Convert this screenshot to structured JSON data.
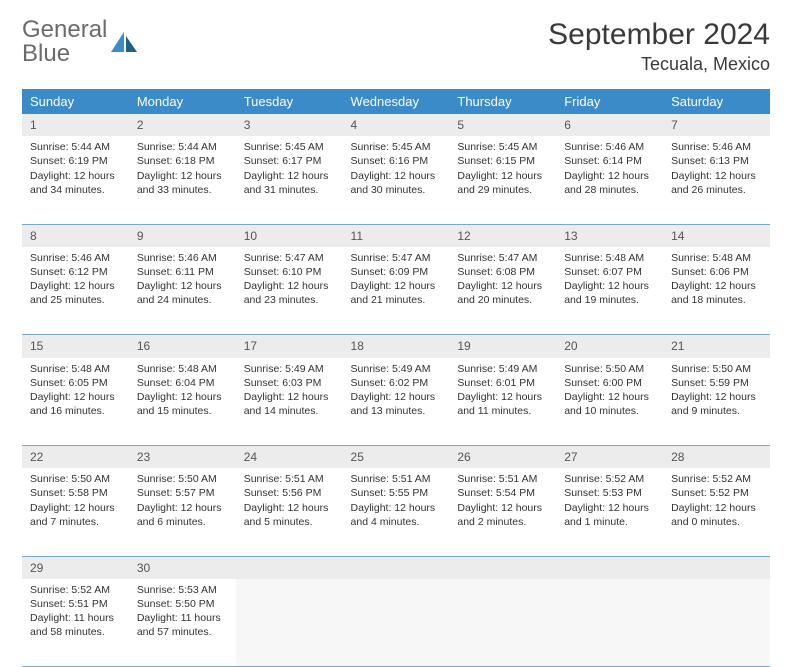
{
  "branding": {
    "logo_word1": "General",
    "logo_word2": "Blue",
    "logo_color_gray": "#6b6b6b",
    "logo_color_blue": "#3b8bc9"
  },
  "header": {
    "month_title": "September 2024",
    "location": "Tecuala, Mexico"
  },
  "styling": {
    "header_bg": "#3b8bc9",
    "header_text": "#ffffff",
    "daynum_bg": "#ececec",
    "row_border": "#7aa8c9",
    "body_font_size": 10.5,
    "title_font_size": 30,
    "location_font_size": 18
  },
  "weekdays": [
    "Sunday",
    "Monday",
    "Tuesday",
    "Wednesday",
    "Thursday",
    "Friday",
    "Saturday"
  ],
  "days": [
    {
      "n": 1,
      "sunrise": "5:44 AM",
      "sunset": "6:19 PM",
      "daylight": "12 hours and 34 minutes."
    },
    {
      "n": 2,
      "sunrise": "5:44 AM",
      "sunset": "6:18 PM",
      "daylight": "12 hours and 33 minutes."
    },
    {
      "n": 3,
      "sunrise": "5:45 AM",
      "sunset": "6:17 PM",
      "daylight": "12 hours and 31 minutes."
    },
    {
      "n": 4,
      "sunrise": "5:45 AM",
      "sunset": "6:16 PM",
      "daylight": "12 hours and 30 minutes."
    },
    {
      "n": 5,
      "sunrise": "5:45 AM",
      "sunset": "6:15 PM",
      "daylight": "12 hours and 29 minutes."
    },
    {
      "n": 6,
      "sunrise": "5:46 AM",
      "sunset": "6:14 PM",
      "daylight": "12 hours and 28 minutes."
    },
    {
      "n": 7,
      "sunrise": "5:46 AM",
      "sunset": "6:13 PM",
      "daylight": "12 hours and 26 minutes."
    },
    {
      "n": 8,
      "sunrise": "5:46 AM",
      "sunset": "6:12 PM",
      "daylight": "12 hours and 25 minutes."
    },
    {
      "n": 9,
      "sunrise": "5:46 AM",
      "sunset": "6:11 PM",
      "daylight": "12 hours and 24 minutes."
    },
    {
      "n": 10,
      "sunrise": "5:47 AM",
      "sunset": "6:10 PM",
      "daylight": "12 hours and 23 minutes."
    },
    {
      "n": 11,
      "sunrise": "5:47 AM",
      "sunset": "6:09 PM",
      "daylight": "12 hours and 21 minutes."
    },
    {
      "n": 12,
      "sunrise": "5:47 AM",
      "sunset": "6:08 PM",
      "daylight": "12 hours and 20 minutes."
    },
    {
      "n": 13,
      "sunrise": "5:48 AM",
      "sunset": "6:07 PM",
      "daylight": "12 hours and 19 minutes."
    },
    {
      "n": 14,
      "sunrise": "5:48 AM",
      "sunset": "6:06 PM",
      "daylight": "12 hours and 18 minutes."
    },
    {
      "n": 15,
      "sunrise": "5:48 AM",
      "sunset": "6:05 PM",
      "daylight": "12 hours and 16 minutes."
    },
    {
      "n": 16,
      "sunrise": "5:48 AM",
      "sunset": "6:04 PM",
      "daylight": "12 hours and 15 minutes."
    },
    {
      "n": 17,
      "sunrise": "5:49 AM",
      "sunset": "6:03 PM",
      "daylight": "12 hours and 14 minutes."
    },
    {
      "n": 18,
      "sunrise": "5:49 AM",
      "sunset": "6:02 PM",
      "daylight": "12 hours and 13 minutes."
    },
    {
      "n": 19,
      "sunrise": "5:49 AM",
      "sunset": "6:01 PM",
      "daylight": "12 hours and 11 minutes."
    },
    {
      "n": 20,
      "sunrise": "5:50 AM",
      "sunset": "6:00 PM",
      "daylight": "12 hours and 10 minutes."
    },
    {
      "n": 21,
      "sunrise": "5:50 AM",
      "sunset": "5:59 PM",
      "daylight": "12 hours and 9 minutes."
    },
    {
      "n": 22,
      "sunrise": "5:50 AM",
      "sunset": "5:58 PM",
      "daylight": "12 hours and 7 minutes."
    },
    {
      "n": 23,
      "sunrise": "5:50 AM",
      "sunset": "5:57 PM",
      "daylight": "12 hours and 6 minutes."
    },
    {
      "n": 24,
      "sunrise": "5:51 AM",
      "sunset": "5:56 PM",
      "daylight": "12 hours and 5 minutes."
    },
    {
      "n": 25,
      "sunrise": "5:51 AM",
      "sunset": "5:55 PM",
      "daylight": "12 hours and 4 minutes."
    },
    {
      "n": 26,
      "sunrise": "5:51 AM",
      "sunset": "5:54 PM",
      "daylight": "12 hours and 2 minutes."
    },
    {
      "n": 27,
      "sunrise": "5:52 AM",
      "sunset": "5:53 PM",
      "daylight": "12 hours and 1 minute."
    },
    {
      "n": 28,
      "sunrise": "5:52 AM",
      "sunset": "5:52 PM",
      "daylight": "12 hours and 0 minutes."
    },
    {
      "n": 29,
      "sunrise": "5:52 AM",
      "sunset": "5:51 PM",
      "daylight": "11 hours and 58 minutes."
    },
    {
      "n": 30,
      "sunrise": "5:53 AM",
      "sunset": "5:50 PM",
      "daylight": "11 hours and 57 minutes."
    }
  ],
  "labels": {
    "sunrise_prefix": "Sunrise: ",
    "sunset_prefix": "Sunset: ",
    "daylight_prefix": "Daylight: "
  },
  "layout": {
    "first_weekday_index": 0,
    "blank_trailing": 5
  }
}
